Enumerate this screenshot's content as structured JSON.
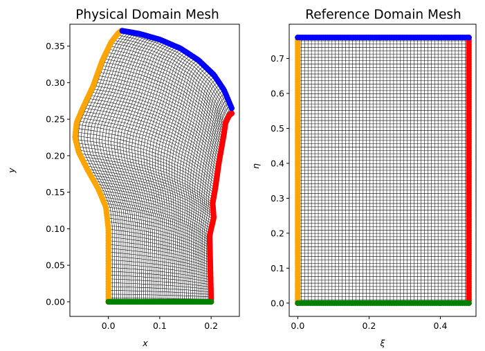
{
  "chart_data": [
    {
      "type": "scatter",
      "title": "Physical Domain Mesh",
      "xlabel": "x",
      "ylabel": "y",
      "xlim": [
        -0.075,
        0.255
      ],
      "ylim": [
        -0.02,
        0.38
      ],
      "xticks": [
        0.0,
        0.1,
        0.2
      ],
      "xtick_labels": [
        "0.0",
        "0.1",
        "0.2"
      ],
      "yticks": [
        0.0,
        0.05,
        0.1,
        0.15,
        0.2,
        0.25,
        0.3,
        0.35
      ],
      "ytick_labels": [
        "0.00",
        "0.05",
        "0.10",
        "0.15",
        "0.20",
        "0.25",
        "0.30",
        "0.35"
      ],
      "grid": false,
      "mesh": {
        "n_xi": 50,
        "n_eta": 80,
        "line_color": "#000000"
      },
      "boundaries": {
        "left": {
          "color": "#ffa500",
          "points": [
            [
              0.0,
              0.0
            ],
            [
              0.0,
              0.05
            ],
            [
              0.0,
              0.1
            ],
            [
              -0.005,
              0.13
            ],
            [
              -0.02,
              0.155
            ],
            [
              -0.04,
              0.18
            ],
            [
              -0.058,
              0.205
            ],
            [
              -0.065,
              0.225
            ],
            [
              -0.062,
              0.245
            ],
            [
              -0.05,
              0.265
            ],
            [
              -0.03,
              0.295
            ],
            [
              -0.012,
              0.33
            ],
            [
              0.005,
              0.355
            ],
            [
              0.018,
              0.367
            ],
            [
              0.025,
              0.371
            ]
          ]
        },
        "top": {
          "color": "#0000ff",
          "points": [
            [
              0.027,
              0.371
            ],
            [
              0.06,
              0.367
            ],
            [
              0.1,
              0.359
            ],
            [
              0.14,
              0.347
            ],
            [
              0.175,
              0.331
            ],
            [
              0.205,
              0.311
            ],
            [
              0.225,
              0.29
            ],
            [
              0.24,
              0.265
            ]
          ]
        },
        "right": {
          "color": "#ff0000",
          "points": [
            [
              0.2,
              0.0
            ],
            [
              0.199,
              0.03
            ],
            [
              0.198,
              0.06
            ],
            [
              0.197,
              0.09
            ],
            [
              0.2,
              0.1
            ],
            [
              0.205,
              0.115
            ],
            [
              0.203,
              0.135
            ],
            [
              0.208,
              0.155
            ],
            [
              0.212,
              0.175
            ],
            [
              0.215,
              0.19
            ],
            [
              0.22,
              0.21
            ],
            [
              0.225,
              0.23
            ],
            [
              0.228,
              0.245
            ],
            [
              0.235,
              0.255
            ],
            [
              0.24,
              0.258
            ]
          ]
        },
        "bottom": {
          "color": "#008000",
          "points": [
            [
              0.0,
              0.0
            ],
            [
              0.2,
              0.0
            ]
          ]
        }
      }
    },
    {
      "type": "scatter",
      "title": "Reference Domain Mesh",
      "xlabel": "ξ",
      "ylabel": "η",
      "xlim": [
        -0.024,
        0.5
      ],
      "ylim": [
        -0.038,
        0.798
      ],
      "xticks": [
        0.0,
        0.2,
        0.4
      ],
      "xtick_labels": [
        "0.0",
        "0.2",
        "0.4"
      ],
      "yticks": [
        0.0,
        0.1,
        0.2,
        0.3,
        0.4,
        0.5,
        0.6,
        0.7
      ],
      "ytick_labels": [
        "0.0",
        "0.1",
        "0.2",
        "0.3",
        "0.4",
        "0.5",
        "0.6",
        "0.7"
      ],
      "grid": false,
      "mesh": {
        "n_xi": 50,
        "n_eta": 80,
        "line_color": "#000000"
      },
      "domain": {
        "xi_max": 0.48,
        "eta_max": 0.76
      },
      "boundary_colors": {
        "left": "#ffa500",
        "top": "#0000ff",
        "right": "#ff0000",
        "bottom": "#008000"
      }
    }
  ]
}
